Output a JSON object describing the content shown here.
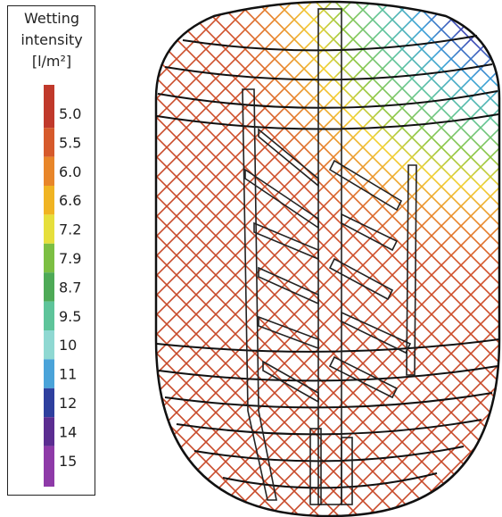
{
  "legend": {
    "title": [
      "Wetting",
      "intensity",
      "[l/m²]"
    ],
    "entries": [
      {
        "label": "5.0",
        "color": "#c0392b"
      },
      {
        "label": "5.5",
        "color": "#d65a2c"
      },
      {
        "label": "6.0",
        "color": "#e8862a"
      },
      {
        "label": "6.6",
        "color": "#f0b423"
      },
      {
        "label": "7.2",
        "color": "#e6df3c"
      },
      {
        "label": "7.9",
        "color": "#7cbf43"
      },
      {
        "label": "8.7",
        "color": "#4eaa57"
      },
      {
        "label": "9.5",
        "color": "#5ec49a"
      },
      {
        "label": "10",
        "color": "#8fd8d2"
      },
      {
        "label": "11",
        "color": "#4aa3d9"
      },
      {
        "label": "12",
        "color": "#2e3f9e"
      },
      {
        "label": "14",
        "color": "#5b2d91"
      },
      {
        "label": "15",
        "color": "#8e3aa8"
      }
    ]
  }
}
